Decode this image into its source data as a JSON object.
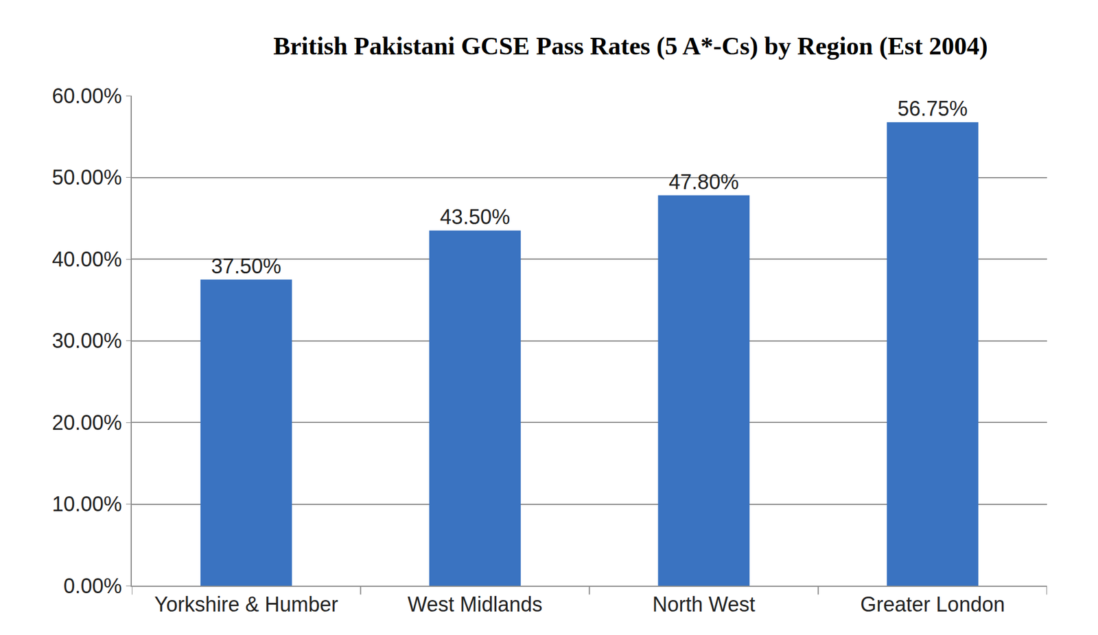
{
  "chart_data": {
    "type": "bar",
    "title": "British Pakistani GCSE Pass Rates (5 A*-Cs) by Region (Est 2004)",
    "categories": [
      "Yorkshire & Humber",
      "West Midlands",
      "North West",
      "Greater London"
    ],
    "values": [
      37.5,
      43.5,
      47.8,
      56.75
    ],
    "value_labels": [
      "37.50%",
      "43.50%",
      "47.80%",
      "56.75%"
    ],
    "data_labels": true,
    "color": "#3a73c1",
    "ylim": [
      0,
      60
    ],
    "yticks": [
      {
        "value": 0,
        "label": "0.00%"
      },
      {
        "value": 10,
        "label": "10.00%"
      },
      {
        "value": 20,
        "label": "20.00%"
      },
      {
        "value": 30,
        "label": "30.00%"
      },
      {
        "value": 40,
        "label": "40.00%"
      },
      {
        "value": 50,
        "label": "50.00%"
      },
      {
        "value": 60,
        "label": "60.00%"
      }
    ],
    "grid": true
  }
}
